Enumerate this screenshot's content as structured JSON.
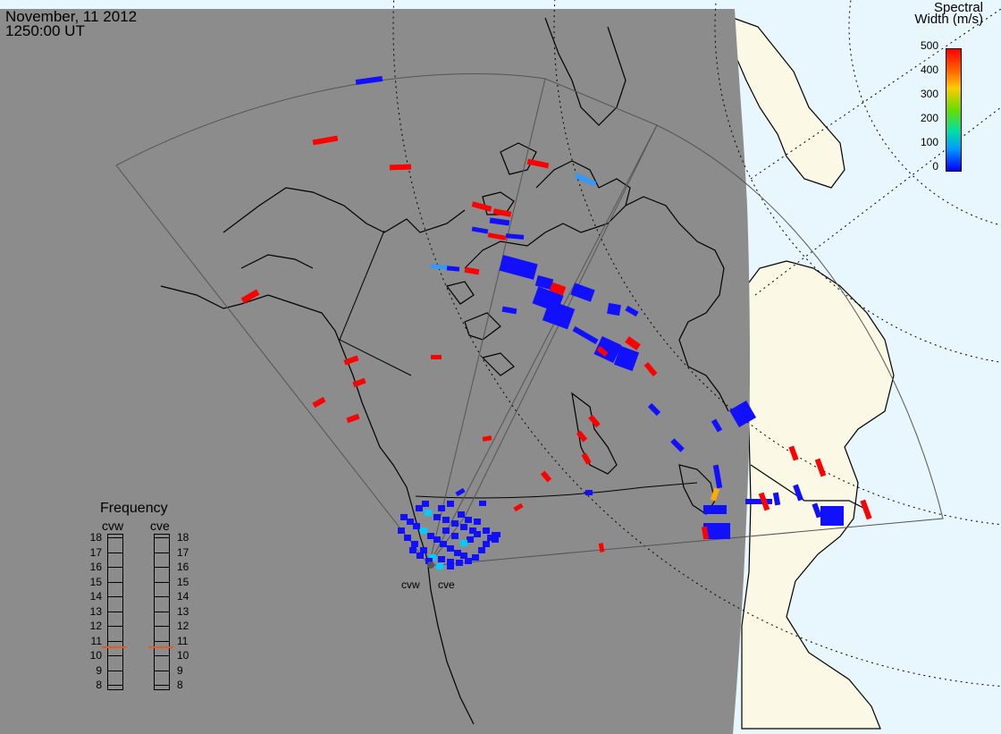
{
  "header": {
    "date": "November, 11 2012",
    "time": "1250:00 UT"
  },
  "colorbar": {
    "title_line1": "Spectral",
    "title_line2": "Width (m/s)",
    "ticks": [
      "500",
      "400",
      "300",
      "200",
      "100",
      "0"
    ],
    "colors": [
      "#ff0000",
      "#ff9900",
      "#ffff00",
      "#00dd00",
      "#00ffff",
      "#0000ff"
    ]
  },
  "frequency": {
    "title": "Frequency",
    "radars": [
      "cvw",
      "cve"
    ],
    "scale": [
      "18",
      "17",
      "16",
      "15",
      "14",
      "13",
      "12",
      "11",
      "10",
      "9",
      "8"
    ],
    "cvw_freq_mhz": 10.6,
    "cve_freq_mhz": 10.6
  },
  "sites": {
    "west": "cvw",
    "east": "cve"
  },
  "colors": {
    "night": "#8c8c8c",
    "land_day": "#fbf8e6",
    "ocean_day": "#e8f6fd",
    "high_width": "#ff0000",
    "low_width": "#1010ff",
    "mid_width": "#3399ff"
  }
}
